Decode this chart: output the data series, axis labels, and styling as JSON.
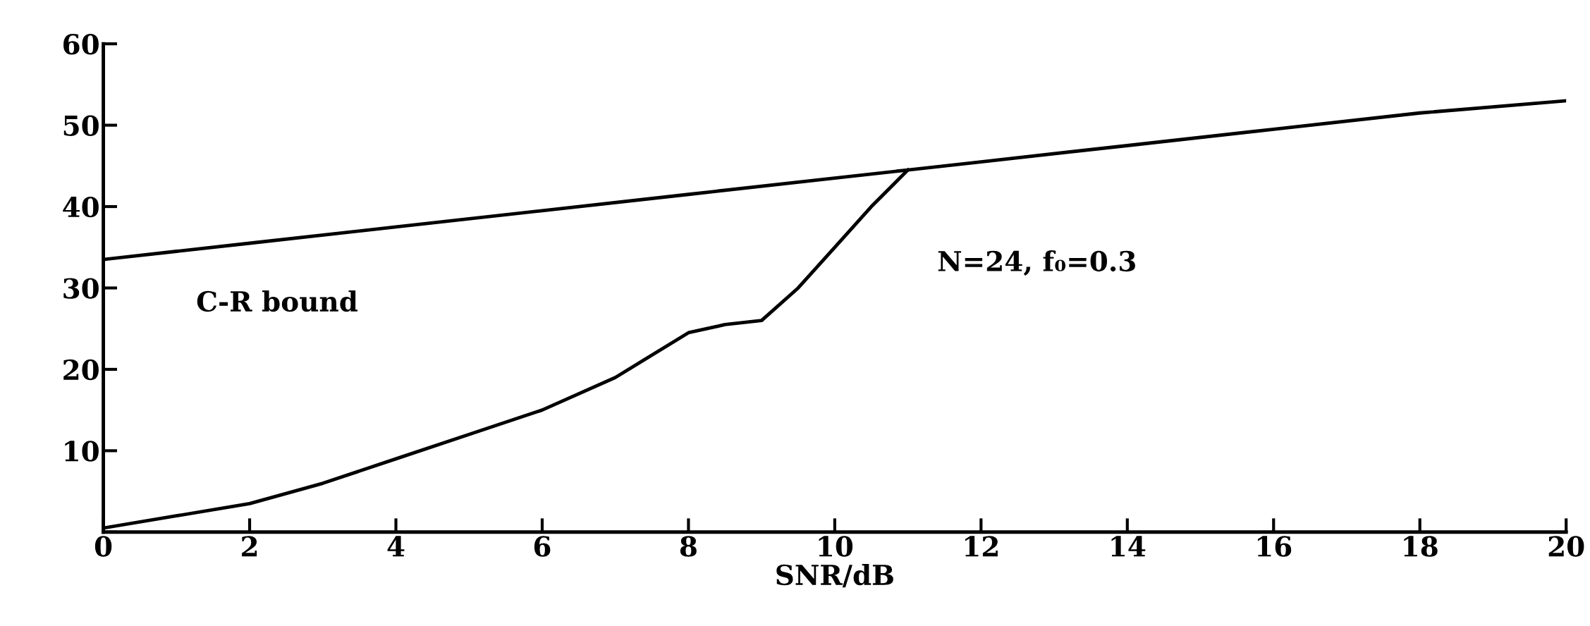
{
  "chart_data": {
    "type": "line",
    "xlabel": "SNR/dB",
    "xlim": [
      0,
      20
    ],
    "xticks": [
      0,
      2,
      4,
      6,
      8,
      10,
      12,
      14,
      16,
      18,
      20
    ],
    "ylim": [
      0,
      60
    ],
    "yticks": [
      {
        "value": 0,
        "label": null
      },
      10,
      20,
      30,
      40,
      50,
      60
    ],
    "grid": false,
    "legend": false,
    "marker": "none",
    "line_style": "solid",
    "series": [
      {
        "name": "C-R bound",
        "color": "#000000",
        "x": [
          0,
          1,
          2,
          4,
          6,
          8,
          10,
          11,
          12,
          14,
          16,
          18,
          20
        ],
        "values": [
          33.5,
          34.5,
          35.5,
          37.5,
          39.5,
          41.5,
          43.5,
          44.5,
          45.5,
          47.5,
          49.5,
          51.5,
          53
        ]
      },
      {
        "color": "#000000",
        "x": [
          0,
          1,
          2,
          3,
          4,
          5,
          6,
          7,
          8,
          8.5,
          9,
          9.5,
          10,
          10.5,
          11
        ],
        "values": [
          0.5,
          2,
          3.5,
          6,
          9,
          12,
          15,
          19,
          24.5,
          25.5,
          26,
          30,
          35,
          40,
          44.5
        ]
      }
    ],
    "annotations": [
      "N=24, f₀=0.3"
    ]
  }
}
